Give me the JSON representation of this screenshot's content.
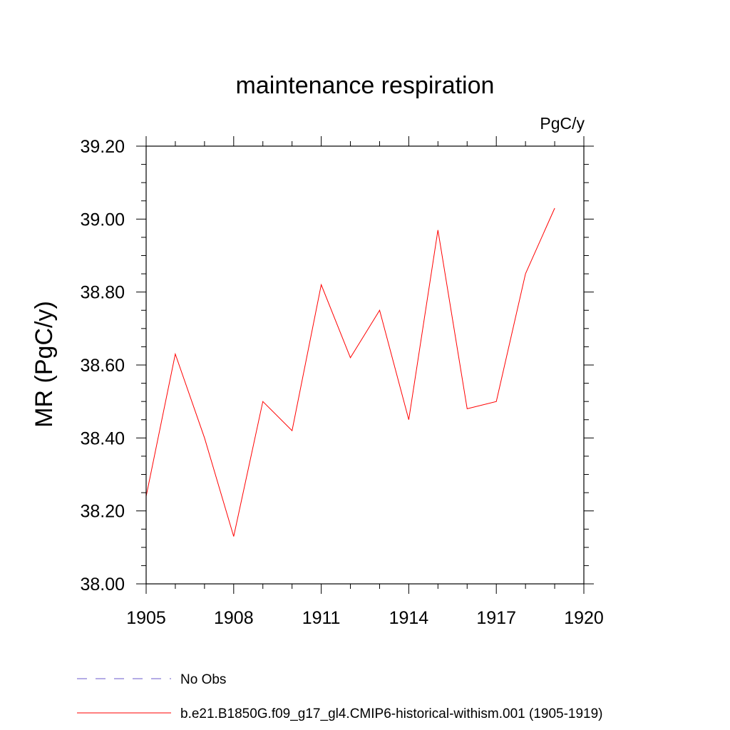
{
  "chart_data": {
    "type": "line",
    "title": "maintenance respiration",
    "units_label": "PgC/y",
    "xlabel": "",
    "ylabel": "MR  (PgC/y)",
    "xlim": [
      1905,
      1920
    ],
    "ylim": [
      38.0,
      39.2
    ],
    "x_ticks": [
      1905,
      1908,
      1911,
      1914,
      1917,
      1920
    ],
    "x_tick_labels": [
      "1905",
      "1908",
      "1911",
      "1914",
      "1917",
      "1920"
    ],
    "y_ticks": [
      38.0,
      38.2,
      38.4,
      38.6,
      38.8,
      39.0,
      39.2
    ],
    "y_tick_labels": [
      "38.00",
      "38.20",
      "38.40",
      "38.60",
      "38.80",
      "39.00",
      "39.20"
    ],
    "grid": false,
    "legend_position": "bottom-left",
    "series": [
      {
        "name": "b.e21.B1850G.f09_g17_gl4.CMIP6-historical-withism.001 (1905-1919)",
        "color": "#ff0000",
        "dash": "solid",
        "x": [
          1905,
          1906,
          1907,
          1908,
          1909,
          1910,
          1911,
          1912,
          1913,
          1914,
          1915,
          1916,
          1917,
          1918,
          1919
        ],
        "y": [
          38.24,
          38.63,
          38.4,
          38.13,
          38.5,
          38.42,
          38.82,
          38.62,
          38.75,
          38.45,
          38.97,
          38.48,
          38.5,
          38.85,
          39.03
        ]
      }
    ],
    "legend": [
      {
        "label": "No Obs",
        "color": "#6a5acd",
        "dash": "dashed"
      },
      {
        "label": "b.e21.B1850G.f09_g17_gl4.CMIP6-historical-withism.001 (1905-1919)",
        "color": "#ff0000",
        "dash": "solid"
      }
    ]
  }
}
